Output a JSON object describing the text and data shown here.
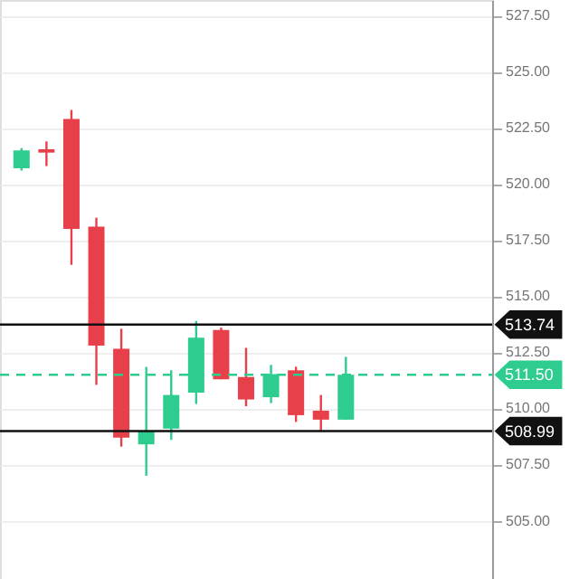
{
  "chart_data": {
    "type": "candlestick",
    "categories": [
      null,
      null,
      null,
      null,
      null,
      null,
      null,
      null,
      null,
      null,
      null,
      null,
      null,
      null,
      null,
      null,
      null,
      null,
      null
    ],
    "ohlc": [
      [
        520.7,
        521.6,
        520.6,
        521.5
      ],
      [
        521.55,
        521.9,
        520.8,
        521.4
      ],
      [
        522.9,
        523.3,
        516.4,
        518.0
      ],
      [
        518.1,
        518.5,
        511.05,
        512.8
      ],
      [
        512.66,
        513.55,
        508.3,
        508.7
      ],
      [
        508.4,
        511.85,
        507.0,
        509.0
      ],
      [
        509.1,
        511.7,
        508.6,
        510.6
      ],
      [
        510.7,
        513.9,
        510.2,
        513.15
      ],
      [
        513.5,
        513.6,
        511.3,
        511.3
      ],
      [
        511.4,
        512.7,
        510.1,
        510.4
      ],
      [
        510.5,
        511.94,
        510.24,
        511.53
      ],
      [
        511.7,
        511.86,
        509.4,
        509.7
      ],
      [
        509.9,
        510.6,
        509.0,
        509.5
      ],
      [
        509.5,
        512.3,
        509.5,
        511.5
      ],
      null,
      null,
      null,
      null,
      null
    ],
    "colors": [
      "#2ecc8e",
      "#e8404a",
      "#e8404a",
      "#e8404a",
      "#e8404a",
      "#2ecc8e",
      "#2ecc8e",
      "#2ecc8e",
      "#e8404a",
      "#e8404a",
      "#2ecc8e",
      "#e8404a",
      "#e8404a",
      "#2ecc8e",
      null,
      null,
      null,
      null,
      null
    ],
    "ylim": [
      502.4,
      528.2
    ],
    "yticks": [
      {
        "value": 505,
        "label": "505.00"
      },
      {
        "value": 507.5,
        "label": "507.50"
      },
      {
        "value": 510,
        "label": "510.00"
      },
      {
        "value": 512.5,
        "label": "512.50"
      },
      {
        "value": 515,
        "label": "515.00"
      },
      {
        "value": 517.5,
        "label": "517.50"
      },
      {
        "value": 520,
        "label": "520.00"
      },
      {
        "value": 522.5,
        "label": "522.50"
      },
      {
        "value": 525,
        "label": "525.00"
      },
      {
        "value": 527.5,
        "label": "527.50"
      }
    ],
    "grid": "y",
    "ref_lines": [
      {
        "axis": "y",
        "value": 513.74,
        "label": "513.74",
        "color": "#111111",
        "line_style": "solid"
      },
      {
        "axis": "y",
        "value": 511.5,
        "label": "511.50",
        "color": "#2ecc8e",
        "line_style": "dashed"
      },
      {
        "axis": "y",
        "value": 508.99,
        "label": "508.99",
        "color": "#111111",
        "line_style": "solid"
      }
    ]
  }
}
